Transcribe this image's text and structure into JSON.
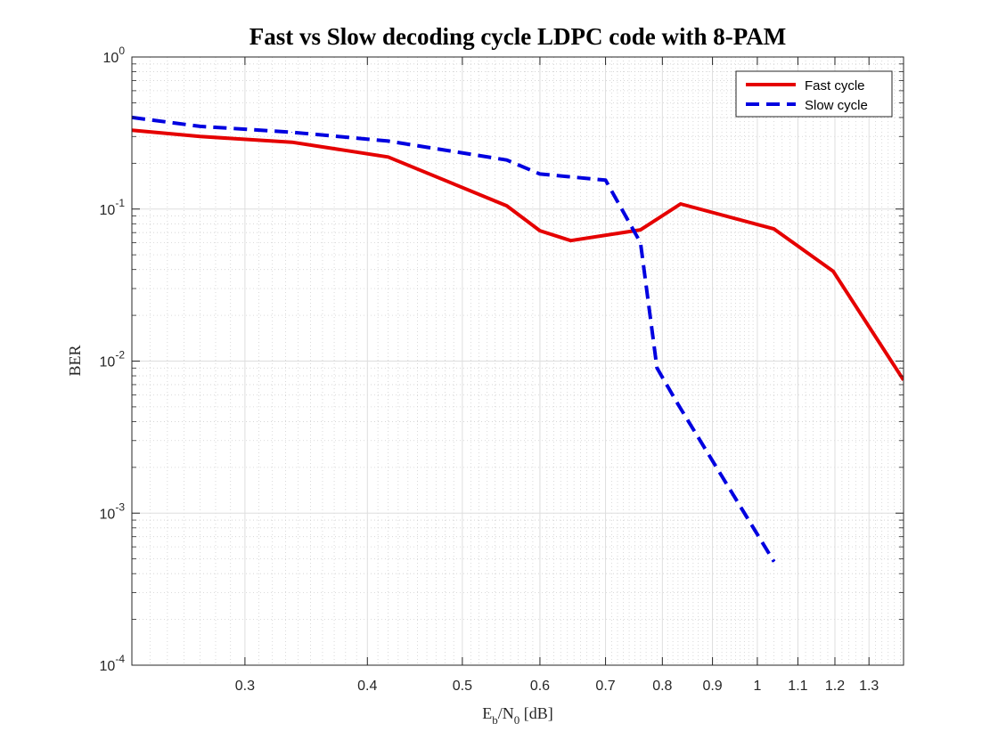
{
  "chart_data": {
    "type": "line",
    "title": "Fast vs Slow decoding cycle LDPC code with 8-PAM",
    "xlabel": {
      "base1": "E",
      "sub1": "b",
      "mid": "/N",
      "sub2": "0",
      "tail": " [dB]"
    },
    "ylabel": "BER",
    "xscale": "log",
    "yscale": "log",
    "xlim": [
      0.23,
      1.41
    ],
    "ylim": [
      0.0001,
      1
    ],
    "x_ticks": [
      {
        "value": 0.3,
        "label": "0.3"
      },
      {
        "value": 0.4,
        "label": "0.4"
      },
      {
        "value": 0.5,
        "label": "0.5"
      },
      {
        "value": 0.6,
        "label": "0.6"
      },
      {
        "value": 0.7,
        "label": "0.7"
      },
      {
        "value": 0.8,
        "label": "0.8"
      },
      {
        "value": 0.9,
        "label": "0.9"
      },
      {
        "value": 1.0,
        "label": "1"
      },
      {
        "value": 1.1,
        "label": "1.1"
      },
      {
        "value": 1.2,
        "label": "1.2"
      },
      {
        "value": 1.3,
        "label": "1.3"
      }
    ],
    "y_ticks": [
      {
        "value": 1,
        "base": "10",
        "exp": "0"
      },
      {
        "value": 0.1,
        "base": "10",
        "exp": "-1"
      },
      {
        "value": 0.01,
        "base": "10",
        "exp": "-2"
      },
      {
        "value": 0.001,
        "base": "10",
        "exp": "-3"
      },
      {
        "value": 0.0001,
        "base": "10",
        "exp": "-4"
      }
    ],
    "grid": true,
    "minor_grid": true,
    "legend_position": "top-right",
    "series": [
      {
        "name": "Fast cycle",
        "color": "#e50000",
        "dash": "solid",
        "x": [
          0.23,
          0.27,
          0.335,
          0.42,
          0.555,
          0.6,
          0.645,
          0.76,
          0.835,
          1.04,
          1.195,
          1.41
        ],
        "y": [
          0.33,
          0.3,
          0.275,
          0.22,
          0.105,
          0.072,
          0.062,
          0.073,
          0.108,
          0.074,
          0.039,
          0.0075
        ]
      },
      {
        "name": "Slow cycle",
        "color": "#0000e0",
        "dash": "dashed",
        "x": [
          0.23,
          0.27,
          0.335,
          0.42,
          0.555,
          0.6,
          0.7,
          0.76,
          0.79,
          0.83,
          1.04
        ],
        "y": [
          0.4,
          0.35,
          0.32,
          0.28,
          0.21,
          0.17,
          0.155,
          0.06,
          0.009,
          0.0052,
          0.00048
        ]
      }
    ]
  }
}
